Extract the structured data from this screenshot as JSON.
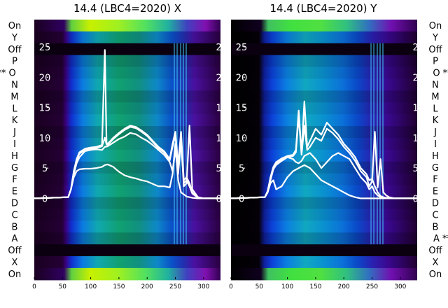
{
  "chart_data": [
    {
      "type": "heatmap",
      "title": "14.4 (LBC4=2020) X",
      "xlabel": "",
      "ylabel": "",
      "xlim": [
        0,
        330
      ],
      "x_ticks": [
        0,
        50,
        100,
        150,
        200,
        250,
        300
      ],
      "ylim": [
        -13,
        29.5
      ],
      "y_ticks": [
        0,
        5,
        10,
        15,
        20,
        25
      ],
      "row_labels": [
        "On",
        "Y",
        "Off",
        "P",
        "** O",
        "N",
        "M",
        "L",
        "K",
        "J",
        "I",
        "H",
        "G",
        "F",
        "E",
        "D",
        "C",
        "B",
        "A",
        "Off",
        "X",
        "On"
      ],
      "overlay_traces": [
        {
          "x": [
            0,
            60,
            65,
            70,
            75,
            80,
            90,
            100,
            110,
            120,
            125,
            128,
            130,
            135,
            140,
            150,
            160,
            170,
            180,
            190,
            200,
            210,
            220,
            230,
            240,
            245,
            250,
            255,
            260,
            265,
            270,
            275,
            280,
            290,
            300,
            320,
            330
          ],
          "y": [
            0,
            0.2,
            1.5,
            4.5,
            6.5,
            7.6,
            8.2,
            8.4,
            8.5,
            8.8,
            24.5,
            9.2,
            9.0,
            9.5,
            10.0,
            10.8,
            11.5,
            12.0,
            11.8,
            11.2,
            10.5,
            9.5,
            8.5,
            7.8,
            6.5,
            9.0,
            11.0,
            5.5,
            11.0,
            3.0,
            3.5,
            2.5,
            1.0,
            0.2,
            0,
            0,
            0
          ]
        },
        {
          "x": [
            0,
            60,
            65,
            70,
            75,
            80,
            90,
            100,
            110,
            120,
            125,
            128,
            130,
            135,
            140,
            150,
            160,
            170,
            180,
            190,
            200,
            210,
            220,
            230,
            240,
            245,
            250,
            255,
            260,
            265,
            270,
            275,
            280,
            290,
            300,
            320,
            330
          ],
          "y": [
            0,
            0.2,
            1.5,
            4.3,
            6.3,
            7.4,
            8.0,
            8.2,
            8.3,
            8.6,
            10.0,
            8.9,
            8.8,
            9.3,
            9.8,
            10.6,
            11.3,
            11.8,
            11.6,
            11.0,
            10.3,
            9.3,
            8.3,
            7.6,
            6.3,
            8.5,
            10.5,
            4.5,
            10.0,
            2.5,
            3.0,
            2.0,
            0.8,
            0.1,
            0,
            0,
            0
          ]
        },
        {
          "x": [
            0,
            60,
            65,
            70,
            75,
            80,
            90,
            100,
            110,
            120,
            125,
            130,
            140,
            150,
            160,
            170,
            180,
            190,
            200,
            210,
            220,
            230,
            240,
            245,
            250,
            255,
            260,
            265,
            270,
            275,
            280,
            290,
            300,
            320,
            330
          ],
          "y": [
            0,
            0.2,
            1.5,
            4.0,
            5.8,
            6.8,
            7.8,
            8.0,
            8.1,
            8.0,
            8.5,
            8.6,
            9.2,
            9.8,
            10.2,
            10.8,
            10.6,
            10.0,
            9.5,
            8.8,
            8.0,
            7.2,
            6.0,
            4.5,
            8.0,
            4.0,
            9.5,
            2.0,
            2.5,
            12.0,
            1.5,
            0.2,
            0,
            0,
            0
          ]
        },
        {
          "x": [
            0,
            60,
            65,
            70,
            75,
            80,
            90,
            100,
            110,
            120,
            125,
            130,
            140,
            150,
            160,
            170,
            180,
            190,
            200,
            210,
            220,
            230,
            240,
            245,
            250,
            255,
            260,
            270,
            280,
            290,
            300,
            320,
            330
          ],
          "y": [
            0,
            0.2,
            1.5,
            3.5,
            4.5,
            4.8,
            4.9,
            4.9,
            5.0,
            5.2,
            5.5,
            5.6,
            5.2,
            4.4,
            3.8,
            3.5,
            3.3,
            3.0,
            2.8,
            2.4,
            2.0,
            2.0,
            1.8,
            4.0,
            9.0,
            3.0,
            1.0,
            0.3,
            0.1,
            0,
            0,
            0,
            0
          ]
        }
      ]
    },
    {
      "type": "heatmap",
      "title": "14.4 (LBC4=2020) Y",
      "xlabel": "",
      "ylabel": "",
      "xlim": [
        0,
        330
      ],
      "x_ticks": [
        0,
        50,
        100,
        150,
        200,
        250,
        300
      ],
      "ylim": [
        -13,
        29.5
      ],
      "y_ticks": [
        0,
        5,
        10,
        15,
        20,
        25
      ],
      "row_labels": [
        "On",
        "Y",
        "Off",
        "P",
        "O **",
        "N",
        "M",
        "L",
        "K",
        "J",
        "I",
        "H",
        "G",
        "F",
        "E",
        "D",
        "C",
        "B",
        "A **",
        "Off",
        "X",
        "On"
      ],
      "overlay_traces": [
        {
          "x": [
            0,
            60,
            65,
            70,
            75,
            80,
            90,
            100,
            110,
            115,
            120,
            125,
            130,
            135,
            140,
            150,
            160,
            170,
            180,
            190,
            200,
            210,
            220,
            230,
            240,
            245,
            250,
            255,
            260,
            265,
            270,
            275,
            280,
            290,
            300,
            320,
            330
          ],
          "y": [
            0,
            0.2,
            1.2,
            3.5,
            5.2,
            6.0,
            6.6,
            7.0,
            7.2,
            8.0,
            14.5,
            7.4,
            16.0,
            8.5,
            9.5,
            11.5,
            10.5,
            12.5,
            11.5,
            10.5,
            9.0,
            8.0,
            6.8,
            5.0,
            4.0,
            3.0,
            3.2,
            2.0,
            1.0,
            0.4,
            0.2,
            0.1,
            0,
            0,
            0,
            0,
            0
          ]
        },
        {
          "x": [
            0,
            60,
            65,
            70,
            75,
            80,
            90,
            100,
            110,
            115,
            120,
            125,
            130,
            135,
            140,
            150,
            160,
            170,
            180,
            190,
            200,
            210,
            220,
            230,
            240,
            245,
            250,
            255,
            260,
            265,
            270,
            275,
            280,
            290,
            300,
            320,
            330
          ],
          "y": [
            0,
            0.2,
            1.2,
            3.3,
            5.0,
            5.8,
            6.4,
            6.8,
            7.0,
            7.6,
            13.5,
            7.2,
            12.0,
            8.0,
            8.5,
            10.0,
            9.5,
            11.5,
            10.8,
            9.8,
            8.5,
            7.5,
            6.2,
            4.5,
            3.5,
            2.0,
            2.8,
            11.0,
            1.8,
            6.5,
            1.0,
            0.5,
            0.2,
            0,
            0,
            0,
            0
          ]
        },
        {
          "x": [
            0,
            60,
            65,
            70,
            75,
            80,
            90,
            100,
            110,
            115,
            120,
            125,
            130,
            140,
            150,
            160,
            170,
            180,
            190,
            200,
            210,
            220,
            230,
            240,
            245,
            250,
            255,
            260,
            265,
            270,
            275,
            280,
            290,
            300,
            320,
            330
          ],
          "y": [
            0,
            0.2,
            1.0,
            3.0,
            4.8,
            5.5,
            6.2,
            6.8,
            6.5,
            6.0,
            5.8,
            6.2,
            7.0,
            7.5,
            6.5,
            5.0,
            6.0,
            7.0,
            7.5,
            7.0,
            6.5,
            5.0,
            3.5,
            2.5,
            1.5,
            2.0,
            1.0,
            0.5,
            0.2,
            0.1,
            0,
            0,
            0,
            0,
            0,
            0
          ]
        },
        {
          "x": [
            0,
            60,
            65,
            70,
            75,
            80,
            90,
            100,
            110,
            120,
            130,
            140,
            150,
            160,
            170,
            180,
            190,
            200,
            210,
            220,
            230,
            240,
            250,
            260,
            270,
            280,
            290,
            300,
            320,
            330
          ],
          "y": [
            0,
            0.2,
            1.0,
            2.5,
            3.0,
            1.5,
            2.0,
            3.5,
            4.5,
            5.0,
            5.5,
            5.0,
            4.0,
            3.0,
            2.5,
            2.0,
            1.5,
            1.0,
            0.5,
            0.2,
            0,
            0,
            0,
            0,
            0,
            0,
            0,
            0,
            0,
            0
          ]
        }
      ]
    }
  ]
}
